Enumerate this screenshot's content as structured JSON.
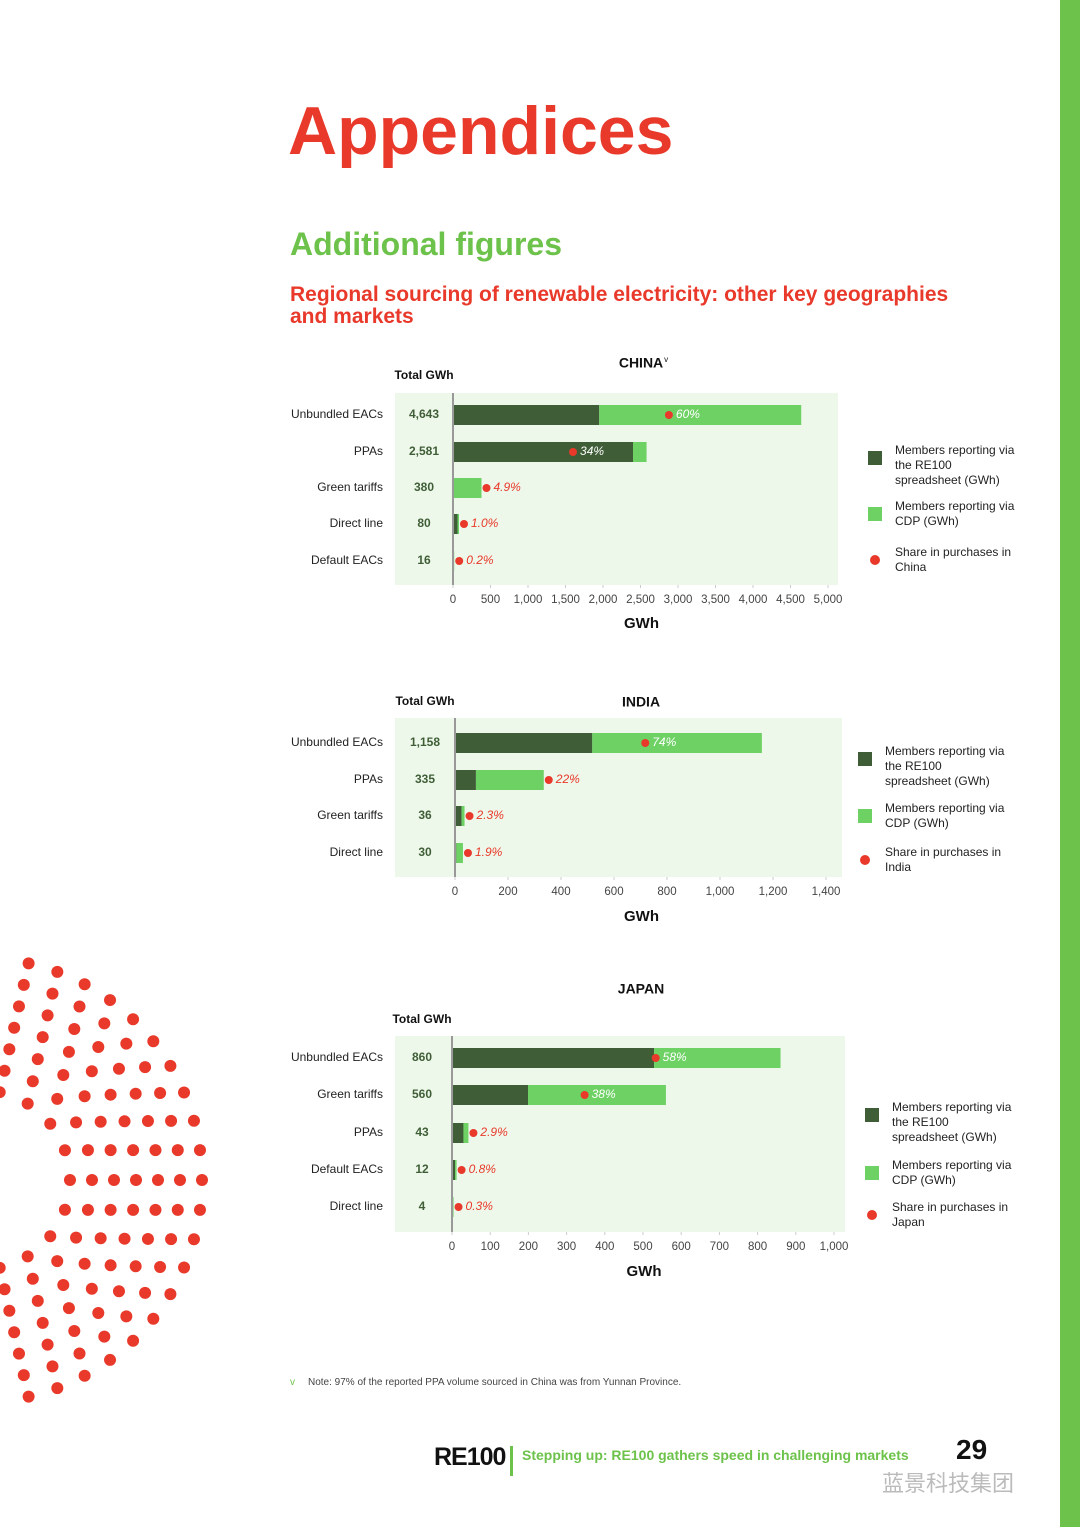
{
  "header": {
    "title": "Appendices",
    "section": "Additional figures",
    "subtitle": "Regional sourcing of renewable electricity: other key geographies and markets"
  },
  "chart_data": [
    {
      "type": "bar",
      "stacked": true,
      "orientation": "horizontal",
      "title": "CHINA",
      "title_note": "v",
      "total_label": "Total GWh",
      "xlabel": "GWh",
      "categories": [
        "Unbundled EACs",
        "PPAs",
        "Green tariffs",
        "Direct line",
        "Default EACs"
      ],
      "series": [
        {
          "name": "Members reporting via the RE100 spreadsheet (GWh)",
          "color": "#3f5e37",
          "values": [
            1950,
            2400,
            0,
            60,
            10
          ]
        },
        {
          "name": "Members reporting via CDP (GWh)",
          "color": "#6dd164",
          "values": [
            2693,
            181,
            380,
            20,
            6
          ]
        }
      ],
      "totals": [
        4643,
        2581,
        380,
        80,
        16
      ],
      "total_labels": [
        "4,643",
        "2,581",
        "380",
        "80",
        "16"
      ],
      "share_name": "Share in purchases in China",
      "share_color": "#e8392a",
      "shares": [
        60,
        34,
        4.9,
        1.0,
        0.2
      ],
      "share_labels": [
        "60%",
        "34%",
        "4.9%",
        "1.0%",
        "0.2%"
      ],
      "xlim": [
        0,
        5000
      ],
      "xticks": [
        0,
        500,
        {
          "value": 1000,
          "label": "1,000"
        },
        {
          "value": 1500,
          "label": "1,500"
        },
        {
          "value": 2000,
          "label": "2,000"
        },
        {
          "value": 2500,
          "label": "2,500"
        },
        {
          "value": 3000,
          "label": "3,000"
        },
        {
          "value": 3500,
          "label": "3,500"
        },
        {
          "value": 4000,
          "label": "4,000"
        },
        {
          "value": 4500,
          "label": "4,500"
        },
        {
          "value": 5000,
          "label": "5,000"
        }
      ]
    },
    {
      "type": "bar",
      "stacked": true,
      "orientation": "horizontal",
      "title": "INDIA",
      "total_label": "Total GWh",
      "xlabel": "GWh",
      "categories": [
        "Unbundled EACs",
        "PPAs",
        "Green tariffs",
        "Direct line"
      ],
      "series": [
        {
          "name": "Members reporting via the RE100 spreadsheet (GWh)",
          "color": "#3f5e37",
          "values": [
            518,
            79,
            25,
            5
          ]
        },
        {
          "name": "Members reporting via CDP (GWh)",
          "color": "#6dd164",
          "values": [
            640,
            256,
            11,
            25
          ]
        }
      ],
      "totals": [
        1158,
        335,
        36,
        30
      ],
      "total_labels": [
        "1,158",
        "335",
        "36",
        "30"
      ],
      "share_name": "Share in purchases in India",
      "share_color": "#e8392a",
      "shares": [
        74,
        22,
        2.3,
        1.9
      ],
      "share_labels": [
        "74%",
        "22%",
        "2.3%",
        "1.9%"
      ],
      "xlim": [
        0,
        1400
      ],
      "xticks": [
        0,
        200,
        400,
        600,
        800,
        {
          "value": 1000,
          "label": "1,000"
        },
        {
          "value": 1200,
          "label": "1,200"
        },
        {
          "value": 1400,
          "label": "1,400"
        }
      ]
    },
    {
      "type": "bar",
      "stacked": true,
      "orientation": "horizontal",
      "title": "JAPAN",
      "total_label": "Total GWh",
      "xlabel": "GWh",
      "categories": [
        "Unbundled EACs",
        "Green tariffs",
        "PPAs",
        "Default EACs",
        "Direct line"
      ],
      "series": [
        {
          "name": "Members reporting via the RE100 spreadsheet (GWh)",
          "color": "#3f5e37",
          "values": [
            529,
            199,
            30,
            8,
            2
          ]
        },
        {
          "name": "Members reporting via CDP (GWh)",
          "color": "#6dd164",
          "values": [
            331,
            361,
            13,
            4,
            2
          ]
        }
      ],
      "totals": [
        860,
        560,
        43,
        12,
        4
      ],
      "share_name": "Share in purchases in Japan",
      "share_color": "#e8392a",
      "shares": [
        58,
        38,
        2.9,
        0.8,
        0.3
      ],
      "share_labels": [
        "58%",
        "38%",
        "2.9%",
        "0.8%",
        "0.3%"
      ],
      "xlim": [
        0,
        1000
      ],
      "xticks": [
        0,
        100,
        200,
        300,
        400,
        500,
        600,
        700,
        800,
        900,
        {
          "value": 1000,
          "label": "1,000"
        }
      ]
    }
  ],
  "note": {
    "marker": "v",
    "text": "Note: 97% of the reported PPA volume sourced in China was from Yunnan Province."
  },
  "footer": {
    "brand": "RE100",
    "report_title": "Stepping up: RE100 gathers speed in challenging markets",
    "page_number": "29",
    "watermark": "蓝景科技集团"
  }
}
